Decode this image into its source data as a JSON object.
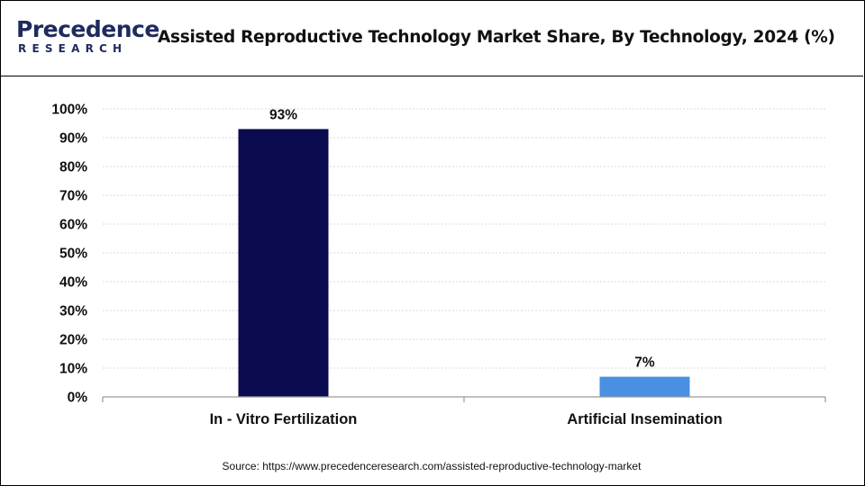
{
  "header": {
    "logo_word": "Precedence",
    "logo_sub": "RESEARCH",
    "title": "Assisted Reproductive Technology Market Share, By Technology, 2024 (%)"
  },
  "chart_data": {
    "type": "bar",
    "title": "Assisted Reproductive Technology Market Share, By Technology, 2024 (%)",
    "categories": [
      "In - Vitro Fertilization",
      "Artificial Insemination"
    ],
    "values": [
      93,
      7
    ],
    "data_labels": [
      "93%",
      "7%"
    ],
    "colors": [
      "#0b0b4f",
      "#4a90e2"
    ],
    "ylim": [
      0,
      100
    ],
    "yticks": [
      "0%",
      "10%",
      "20%",
      "30%",
      "40%",
      "50%",
      "60%",
      "70%",
      "80%",
      "90%",
      "100%"
    ],
    "xlabel": "",
    "ylabel": "",
    "grid": true,
    "legend": "none"
  },
  "footer": {
    "source": "Source: https://www.precedenceresearch.com/assisted-reproductive-technology-market"
  }
}
